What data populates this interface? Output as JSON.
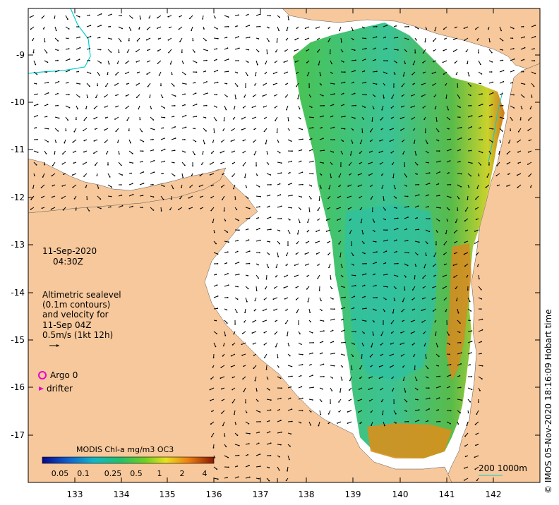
{
  "map": {
    "date_line": "11-Sep-2020",
    "time_line": "04:30Z",
    "legend_lines": [
      "Altimetric sealevel",
      "(0.1m contours)",
      "and velocity for",
      "11-Sep 04Z",
      "0.5m/s (1kt 12h)"
    ],
    "argo_label": "Argo 0",
    "drifter_label": "drifter",
    "colorbar_title": "MODIS Chl-a mg/m3 OC3",
    "colorbar_ticks": [
      "0.05",
      "0.1",
      "0.25",
      "0.5",
      "1",
      "2",
      "4"
    ],
    "scale_label": "200  1000m",
    "credit": "© IMOS 05-Nov-2020 18:16:09 Hobart time",
    "x_ticks": [
      "133",
      "134",
      "135",
      "136",
      "137",
      "138",
      "139",
      "140",
      "141",
      "142"
    ],
    "y_ticks": [
      "-9",
      "-10",
      "-11",
      "-12",
      "-13",
      "-14",
      "-15",
      "-16",
      "-17"
    ],
    "colors": {
      "land": "#f7c89b",
      "ocean": "#ffffff",
      "argo": "#e800d0",
      "drifter": "#e800d0",
      "contour": "#00d0d0",
      "colorbar_low": "#08088a",
      "colorbar_high": "#8b1a00"
    }
  }
}
